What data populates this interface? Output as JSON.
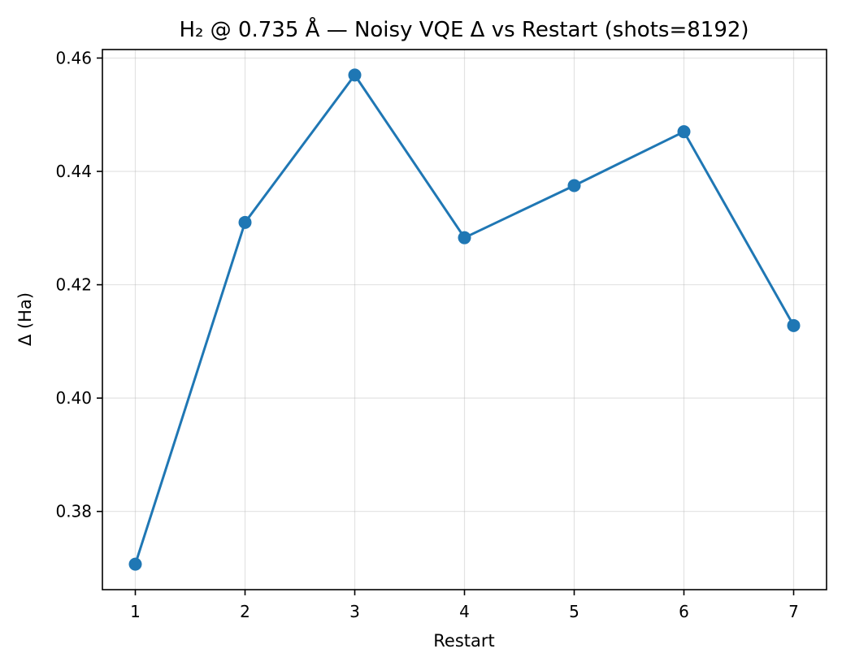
{
  "chart_data": {
    "type": "line",
    "title": "H₂ @ 0.735 Å — Noisy VQE Δ vs Restart (shots=8192)",
    "xlabel": "Restart",
    "ylabel": "Δ (Ha)",
    "x": [
      1,
      2,
      3,
      4,
      5,
      6,
      7
    ],
    "series": [
      {
        "values": [
          0.3707,
          0.431,
          0.457,
          0.4283,
          0.4375,
          0.447,
          0.4128
        ],
        "color": "#1f77b4",
        "marker": "circle"
      }
    ],
    "xlim": [
      0.7,
      7.3
    ],
    "ylim": [
      0.3662,
      0.4615
    ],
    "xticks": [
      1,
      2,
      3,
      4,
      5,
      6,
      7
    ],
    "xtick_labels": [
      "1",
      "2",
      "3",
      "4",
      "5",
      "6",
      "7"
    ],
    "yticks": [
      0.38,
      0.4,
      0.42,
      0.44,
      0.46
    ],
    "ytick_labels": [
      "0.38",
      "0.40",
      "0.42",
      "0.44",
      "0.46"
    ],
    "grid": true
  }
}
